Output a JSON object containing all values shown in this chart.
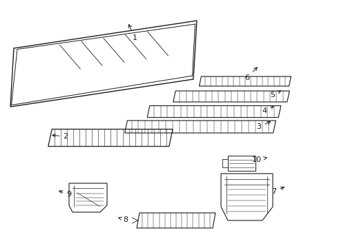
{
  "bg_color": "#ffffff",
  "line_color": "#1a1a1a",
  "fig_width": 4.89,
  "fig_height": 3.6,
  "dpi": 100,
  "font_size": 8
}
